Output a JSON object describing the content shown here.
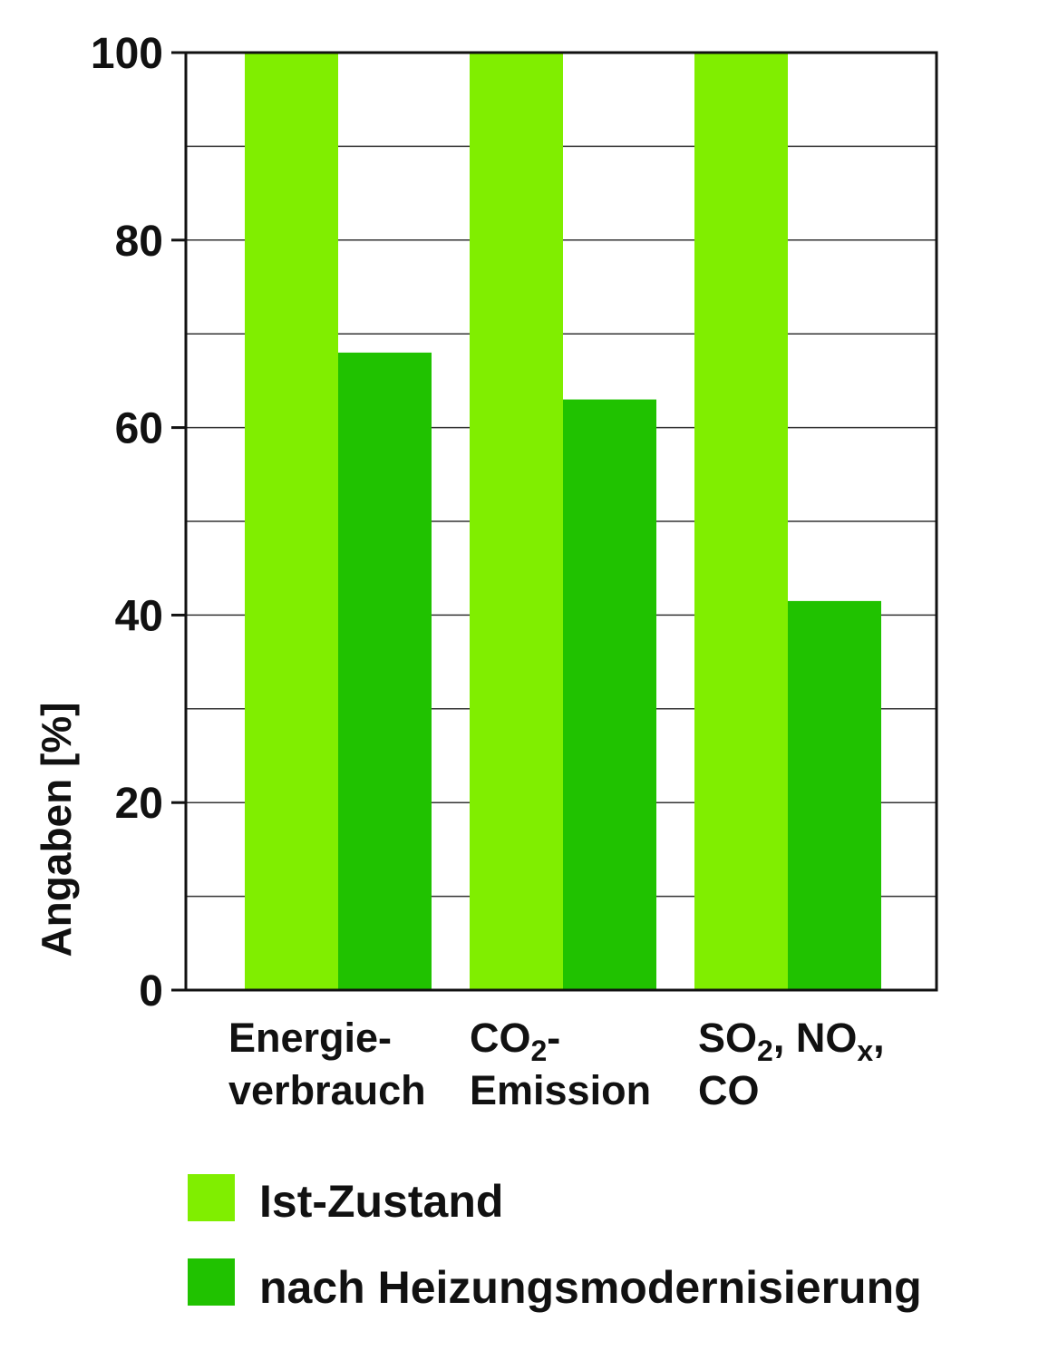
{
  "chart_data": {
    "type": "bar",
    "ylabel": "Angaben [%]",
    "ylim": [
      0,
      100
    ],
    "yticks": [
      "0",
      "20",
      "40",
      "60",
      "80",
      "100"
    ],
    "grid_step": 10,
    "grid": true,
    "legend_position": "bottom",
    "categories": [
      {
        "line1": "Energie-",
        "line2": "verbrauch"
      },
      {
        "line1": "CO",
        "line1_sub": "2",
        "line1_end": "-",
        "line2": "Emission"
      },
      {
        "line1": "SO",
        "line1_sub": "2",
        "line1_mid": ", NO",
        "line1_sub2": "x",
        "line1_end": ",",
        "line2": "CO"
      }
    ],
    "series": [
      {
        "name": "Ist-Zustand",
        "color": "#80ee00",
        "values": [
          100,
          100,
          100
        ]
      },
      {
        "name": "nach Heizungsmodernisierung",
        "color": "#20c200",
        "values": [
          68,
          63,
          41.5
        ]
      }
    ]
  }
}
